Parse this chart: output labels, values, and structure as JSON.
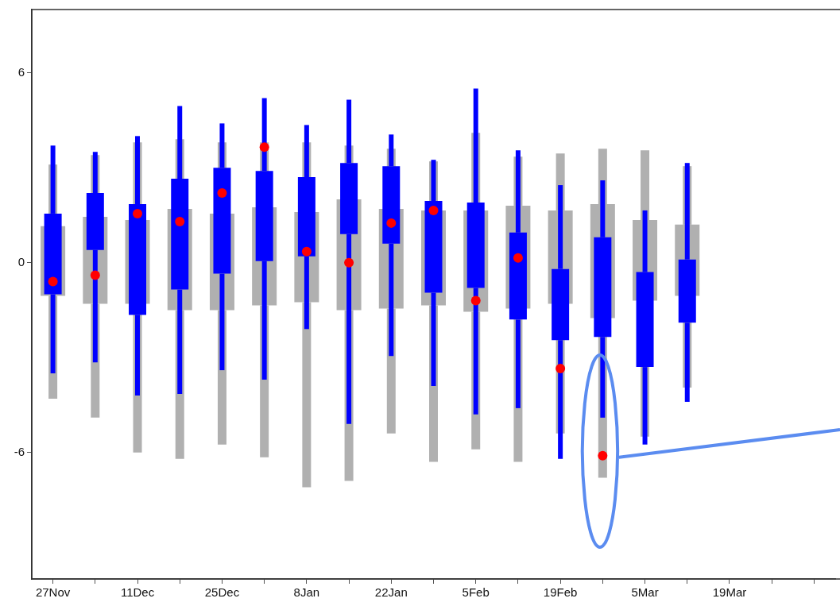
{
  "chart_data": {
    "type": "box",
    "categories": [
      "27Nov",
      null,
      "11Dec",
      null,
      "25Dec",
      null,
      "8Jan",
      null,
      "22Jan",
      null,
      "5Feb",
      null,
      "19Feb",
      null,
      "5Mar",
      null,
      "19Mar",
      null,
      null
    ],
    "series": [
      {
        "color": "#b0b0b0",
        "boxes": [
          {
            "low": -4.3,
            "q1": -1.05,
            "q3": 1.15,
            "high": 3.1
          },
          {
            "low": -4.9,
            "q1": -1.3,
            "q3": 1.45,
            "high": 3.4
          },
          {
            "low": -6.0,
            "q1": -1.3,
            "q3": 1.35,
            "high": 3.8
          },
          {
            "low": -6.2,
            "q1": -1.5,
            "q3": 1.7,
            "high": 3.9
          },
          {
            "low": -5.75,
            "q1": -1.5,
            "q3": 1.55,
            "high": 3.8
          },
          {
            "low": -6.15,
            "q1": -1.35,
            "q3": 1.75,
            "high": 3.8
          },
          {
            "low": -7.1,
            "q1": -1.25,
            "q3": 1.6,
            "high": 3.8
          },
          {
            "low": -6.9,
            "q1": -1.5,
            "q3": 2.0,
            "high": 3.7
          },
          {
            "low": -5.4,
            "q1": -1.45,
            "q3": 1.7,
            "high": 3.6
          },
          {
            "low": -6.3,
            "q1": -1.35,
            "q3": 1.65,
            "high": 3.2
          },
          {
            "low": -5.9,
            "q1": -1.55,
            "q3": 1.65,
            "high": 4.1
          },
          {
            "low": -6.3,
            "q1": -1.45,
            "q3": 1.8,
            "high": 3.35
          },
          {
            "low": -5.4,
            "q1": -1.3,
            "q3": 1.65,
            "high": 3.45
          },
          {
            "low": -6.8,
            "q1": -1.75,
            "q3": 1.85,
            "high": 3.6
          },
          {
            "low": -5.5,
            "q1": -1.2,
            "q3": 1.35,
            "high": 3.55
          },
          {
            "low": -3.95,
            "q1": -1.05,
            "q3": 1.2,
            "high": 3.05
          },
          null,
          null,
          null
        ]
      },
      {
        "color": "#0000ff",
        "boxes": [
          {
            "low": -3.5,
            "q1": -1.0,
            "q3": 1.55,
            "high": 3.7
          },
          {
            "low": -3.15,
            "q1": 0.4,
            "q3": 2.2,
            "high": 3.5
          },
          {
            "low": -4.2,
            "q1": -1.65,
            "q3": 1.85,
            "high": 4.0
          },
          {
            "low": -4.15,
            "q1": -0.85,
            "q3": 2.65,
            "high": 4.95
          },
          {
            "low": -3.4,
            "q1": -0.35,
            "q3": 3.0,
            "high": 4.4
          },
          {
            "low": -3.7,
            "q1": 0.05,
            "q3": 2.9,
            "high": 5.2
          },
          {
            "low": -2.1,
            "q1": 0.2,
            "q3": 2.7,
            "high": 4.35
          },
          {
            "low": -5.1,
            "q1": 0.9,
            "q3": 3.15,
            "high": 5.15
          },
          {
            "low": -2.95,
            "q1": 0.6,
            "q3": 3.05,
            "high": 4.05
          },
          {
            "low": -3.9,
            "q1": -0.95,
            "q3": 1.95,
            "high": 3.25
          },
          {
            "low": -4.8,
            "q1": -0.8,
            "q3": 1.9,
            "high": 5.5
          },
          {
            "low": -4.6,
            "q1": -1.8,
            "q3": 0.95,
            "high": 3.55
          },
          {
            "low": -6.2,
            "q1": -2.45,
            "q3": -0.2,
            "high": 2.45
          },
          {
            "low": -4.9,
            "q1": -2.35,
            "q3": 0.8,
            "high": 2.6
          },
          {
            "low": -5.75,
            "q1": -3.3,
            "q3": -0.3,
            "high": 1.65
          },
          {
            "low": -4.4,
            "q1": -1.9,
            "q3": 0.1,
            "high": 3.15
          },
          null,
          null,
          null
        ]
      },
      {
        "type": "scatter",
        "color": "#ff0000",
        "values": [
          -0.6,
          -0.4,
          1.55,
          1.3,
          2.2,
          3.65,
          0.35,
          0.0,
          1.25,
          1.65,
          -1.2,
          0.15,
          -3.35,
          -6.1,
          null,
          null,
          null,
          null,
          null
        ]
      }
    ],
    "ylim": [
      -10,
      8
    ],
    "yticks": [
      -6,
      0,
      6
    ],
    "marker": "circle",
    "grid": false,
    "legend": false
  }
}
